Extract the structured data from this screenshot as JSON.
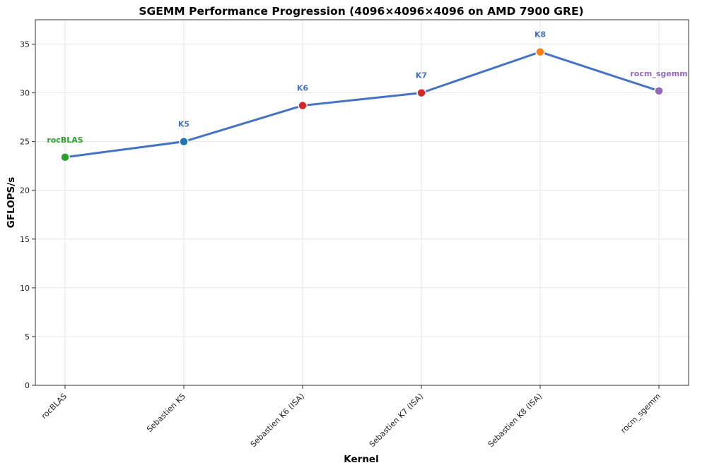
{
  "chart_data": {
    "type": "line",
    "title": "SGEMM Performance Progression (4096×4096×4096 on AMD 7900 GRE)",
    "xlabel": "Kernel",
    "ylabel": "GFLOPS/s",
    "ylim": [
      0,
      37.5
    ],
    "yticks": [
      0,
      5,
      10,
      15,
      20,
      25,
      30,
      35
    ],
    "grid": true,
    "categories": [
      "rocBLAS",
      "Sebastien K5",
      "Sebastien K6 (ISA)",
      "Sebastien K7 (ISA)",
      "Sebastien K8 (ISA)",
      "rocm_sgemm"
    ],
    "series": [
      {
        "values": [
          23.4,
          25.0,
          28.7,
          30.0,
          34.2,
          30.2
        ],
        "line_color": "#4472c4"
      }
    ],
    "point_labels": [
      "rocBLAS",
      "K5",
      "K6",
      "K7",
      "K8",
      "rocm_sgemm"
    ],
    "point_colors": [
      "#2ca02c",
      "#1f77b4",
      "#d62728",
      "#d62728",
      "#ff7f0e",
      "#9467bd"
    ],
    "label_colors": [
      "#2ca02c",
      "#4472c4",
      "#4472c4",
      "#4472c4",
      "#4472c4",
      "#9467bd"
    ]
  }
}
